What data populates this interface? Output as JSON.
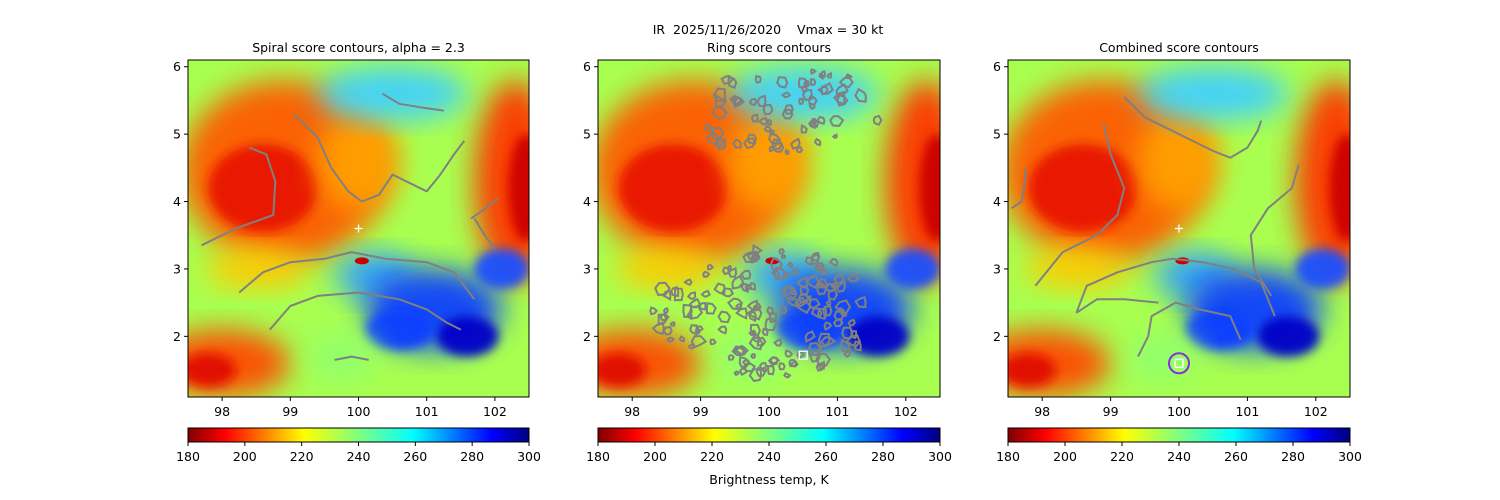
{
  "figure": {
    "suptitle": "IR  2025/11/26/2020    Vmax = 30 kt",
    "colorbar_label": "Brightness temp, K"
  },
  "chart_data": [
    {
      "type": "heatmap",
      "title": "Spiral score contours, alpha =  2.3",
      "xlim": [
        97.5,
        102.5
      ],
      "ylim": [
        1.1,
        6.1
      ],
      "xticks": [
        98,
        99,
        100,
        101,
        102
      ],
      "xtick_labels": [
        "98",
        "99",
        "100",
        "101",
        "102"
      ],
      "yticks": [
        2,
        3,
        4,
        5,
        6
      ],
      "ytick_labels": [
        "2",
        "3",
        "4",
        "5",
        "6"
      ],
      "colorbar": {
        "min": 180,
        "max": 300,
        "ticks": [
          180,
          200,
          220,
          240,
          260,
          280,
          300
        ],
        "tick_labels": [
          "180",
          "200",
          "220",
          "240",
          "260",
          "280",
          "300"
        ],
        "cmap": "jet_r"
      },
      "cross_marker": [
        100.0,
        3.6
      ],
      "square_marker": null,
      "circle_marker": null,
      "contours": [
        [
          [
            97.7,
            3.35
          ],
          [
            98.2,
            3.6
          ],
          [
            98.75,
            3.8
          ],
          [
            98.78,
            4.3
          ],
          [
            98.65,
            4.7
          ],
          [
            98.4,
            4.8
          ]
        ],
        [
          [
            98.25,
            2.65
          ],
          [
            98.6,
            2.95
          ],
          [
            99.0,
            3.1
          ],
          [
            99.5,
            3.15
          ],
          [
            99.9,
            3.25
          ],
          [
            100.4,
            3.15
          ],
          [
            101.0,
            3.1
          ],
          [
            101.4,
            2.95
          ],
          [
            101.7,
            2.55
          ]
        ],
        [
          [
            98.7,
            2.1
          ],
          [
            99.0,
            2.45
          ],
          [
            99.4,
            2.6
          ],
          [
            100.0,
            2.65
          ],
          [
            100.6,
            2.55
          ],
          [
            101.0,
            2.4
          ],
          [
            101.3,
            2.2
          ],
          [
            101.5,
            2.1
          ]
        ],
        [
          [
            99.05,
            5.3
          ],
          [
            99.4,
            4.95
          ],
          [
            99.6,
            4.5
          ],
          [
            99.85,
            4.15
          ],
          [
            100.05,
            4.0
          ],
          [
            100.3,
            4.1
          ],
          [
            100.5,
            4.4
          ],
          [
            100.8,
            4.25
          ],
          [
            101.0,
            4.15
          ],
          [
            101.2,
            4.4
          ],
          [
            101.4,
            4.7
          ],
          [
            101.55,
            4.9
          ]
        ],
        [
          [
            100.35,
            5.6
          ],
          [
            100.6,
            5.45
          ],
          [
            100.9,
            5.4
          ],
          [
            101.25,
            5.35
          ]
        ],
        [
          [
            101.65,
            3.75
          ],
          [
            101.8,
            3.85
          ],
          [
            102.05,
            4.05
          ]
        ],
        [
          [
            101.7,
            3.75
          ],
          [
            101.85,
            3.5
          ],
          [
            102.0,
            3.3
          ]
        ],
        [
          [
            99.65,
            1.65
          ],
          [
            99.9,
            1.7
          ],
          [
            100.15,
            1.65
          ]
        ]
      ]
    },
    {
      "type": "heatmap",
      "title": "Ring score contours",
      "xlim": [
        97.5,
        102.5
      ],
      "ylim": [
        1.1,
        6.1
      ],
      "xticks": [
        98,
        99,
        100,
        101,
        102
      ],
      "xtick_labels": [
        "98",
        "99",
        "100",
        "101",
        "102"
      ],
      "yticks": [
        2,
        3,
        4,
        5,
        6
      ],
      "ytick_labels": [
        "2",
        "3",
        "4",
        "5",
        "6"
      ],
      "colorbar": {
        "min": 180,
        "max": 300,
        "ticks": [
          180,
          200,
          220,
          240,
          260,
          280,
          300
        ],
        "tick_labels": [
          "180",
          "200",
          "220",
          "240",
          "260",
          "280",
          "300"
        ],
        "cmap": "jet_r"
      },
      "cross_marker": null,
      "square_marker": [
        100.5,
        1.72
      ],
      "circle_marker": null,
      "contour_blobs": [
        {
          "cx": 100.28,
          "cy": 5.3,
          "rx": 1.32,
          "ry": 0.75,
          "count": 65
        },
        {
          "cx": 99.95,
          "cy": 2.35,
          "rx": 1.65,
          "ry": 0.95,
          "count": 150
        }
      ]
    },
    {
      "type": "heatmap",
      "title": "Combined score contours",
      "xlim": [
        97.5,
        102.5
      ],
      "ylim": [
        1.1,
        6.1
      ],
      "xticks": [
        98,
        99,
        100,
        101,
        102
      ],
      "xtick_labels": [
        "98",
        "99",
        "100",
        "101",
        "102"
      ],
      "yticks": [
        2,
        3,
        4,
        5,
        6
      ],
      "ytick_labels": [
        "2",
        "3",
        "4",
        "5",
        "6"
      ],
      "colorbar": {
        "min": 180,
        "max": 300,
        "ticks": [
          180,
          200,
          220,
          240,
          260,
          280,
          300
        ],
        "tick_labels": [
          "180",
          "200",
          "220",
          "240",
          "260",
          "280",
          "300"
        ],
        "cmap": "jet_r"
      },
      "cross_marker": [
        100.0,
        3.6
      ],
      "square_marker": [
        100.0,
        1.6
      ],
      "circle_marker": [
        100.0,
        1.6
      ],
      "contours": [
        [
          [
            97.55,
            3.9
          ],
          [
            97.7,
            4.0
          ],
          [
            97.75,
            4.3
          ],
          [
            97.75,
            4.5
          ]
        ],
        [
          [
            97.9,
            2.75
          ],
          [
            98.3,
            3.25
          ],
          [
            98.8,
            3.5
          ],
          [
            99.1,
            3.8
          ],
          [
            99.2,
            4.2
          ],
          [
            99.0,
            4.7
          ],
          [
            98.9,
            5.15
          ]
        ],
        [
          [
            98.5,
            2.35
          ],
          [
            98.65,
            2.75
          ],
          [
            99.1,
            2.95
          ],
          [
            99.6,
            3.1
          ],
          [
            99.9,
            3.15
          ],
          [
            100.35,
            3.1
          ],
          [
            100.8,
            3.0
          ],
          [
            101.2,
            2.8
          ],
          [
            101.4,
            2.3
          ]
        ],
        [
          [
            99.2,
            5.55
          ],
          [
            99.5,
            5.25
          ],
          [
            99.9,
            5.05
          ],
          [
            100.2,
            4.9
          ],
          [
            100.5,
            4.75
          ],
          [
            100.75,
            4.65
          ],
          [
            101.0,
            4.8
          ],
          [
            101.15,
            5.05
          ],
          [
            101.2,
            5.2
          ]
        ],
        [
          [
            101.35,
            2.6
          ],
          [
            101.1,
            3.0
          ],
          [
            101.05,
            3.5
          ],
          [
            101.3,
            3.9
          ],
          [
            101.65,
            4.2
          ],
          [
            101.75,
            4.55
          ]
        ],
        [
          [
            99.4,
            1.7
          ],
          [
            99.55,
            2.0
          ],
          [
            99.6,
            2.3
          ],
          [
            99.95,
            2.5
          ],
          [
            100.3,
            2.4
          ],
          [
            100.75,
            2.3
          ],
          [
            100.9,
            1.95
          ]
        ],
        [
          [
            98.5,
            2.35
          ],
          [
            98.8,
            2.55
          ],
          [
            99.2,
            2.55
          ],
          [
            99.7,
            2.5
          ]
        ]
      ]
    }
  ]
}
